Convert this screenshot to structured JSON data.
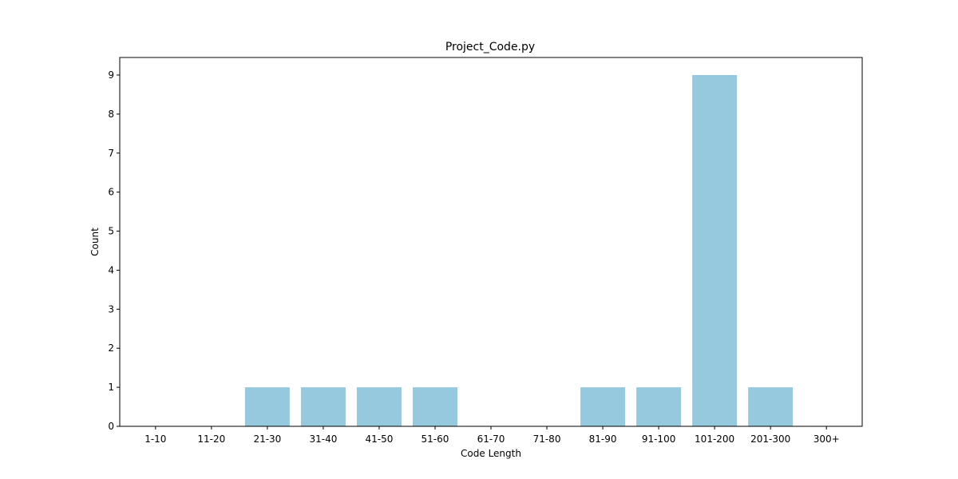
{
  "chart_data": {
    "type": "bar",
    "title": "Project_Code.py",
    "xlabel": "Code Length",
    "ylabel": "Count",
    "categories": [
      "1-10",
      "11-20",
      "21-30",
      "31-40",
      "41-50",
      "51-60",
      "61-70",
      "71-80",
      "81-90",
      "91-100",
      "101-200",
      "201-300",
      "300+"
    ],
    "values": [
      0,
      0,
      1,
      1,
      1,
      1,
      0,
      0,
      1,
      1,
      9,
      1,
      0
    ],
    "ylim": [
      0,
      9.45
    ],
    "yticks": [
      0,
      1,
      2,
      3,
      4,
      5,
      6,
      7,
      8,
      9
    ],
    "grid": false,
    "bar_color": "#96c9dd"
  }
}
